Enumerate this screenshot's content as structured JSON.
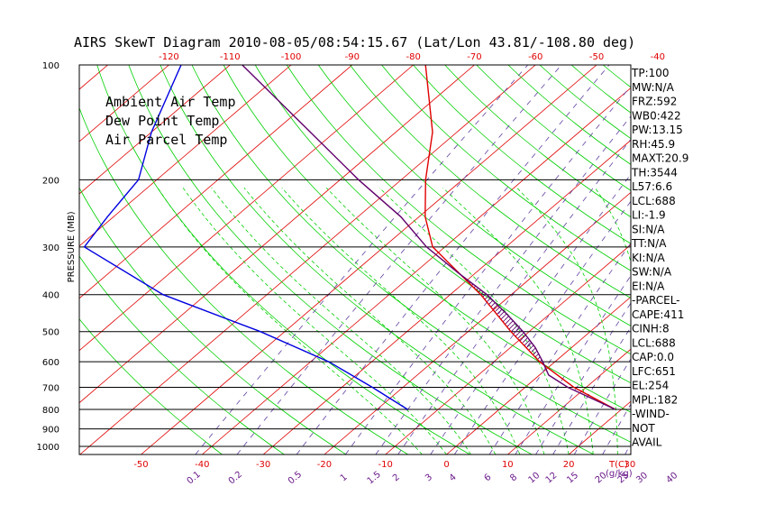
{
  "title": "AIRS SkewT Diagram 2010-08-05/08:54:15.67 (Lat/Lon 43.81/-108.80 deg)",
  "colors": {
    "ambient": "#e00000",
    "dewpoint": "#0000e0",
    "parcel": "#60006c",
    "isotherm": "#e00000",
    "dry_adiabat": "#00d000",
    "moist_adiabat": "#00d000",
    "mixing_ratio": "#6040a0",
    "pressure_line": "#000000",
    "top_tick": "#e00000",
    "bottom_tick": "#e00000",
    "mixing_label": "#6a1a8a"
  },
  "legend": {
    "ambient": "Ambient Air Temp",
    "dewpoint": "Dew Point Temp",
    "parcel": "Air Parcel Temp"
  },
  "chart_data": {
    "type": "line",
    "ylabel": "PRESSURE (MB)",
    "y_scale": "log",
    "ylim": [
      1050,
      100
    ],
    "pressure_ticks": [
      100,
      200,
      300,
      400,
      500,
      600,
      700,
      800,
      900,
      1000
    ],
    "top_temperature_ticks": [
      -120,
      -110,
      -100,
      -90,
      -80,
      -70,
      -60,
      -50,
      -40
    ],
    "bottom_temperature_ticks": [
      -50,
      -40,
      -30,
      -20,
      -10,
      0,
      10,
      20,
      30
    ],
    "bottom_axis_unit": "T(C)",
    "mixing_ratio_labels": [
      "0.1",
      "0.2",
      "0.5",
      "1",
      "1.5",
      "2",
      "3",
      "4",
      "6",
      "8",
      "10",
      "12",
      "15",
      "20",
      "25",
      "30",
      "40"
    ],
    "mixing_ratio_unit": "(g/kg)",
    "series": [
      {
        "key": "ambient",
        "pressure": [
          100,
          150,
          200,
          250,
          300,
          400,
          500,
          600,
          700,
          800
        ],
        "temperature": [
          -78,
          -64,
          -56,
          -49,
          -42,
          -25,
          -13,
          -2.5,
          8,
          19
        ]
      },
      {
        "key": "dewpoint",
        "pressure": [
          100,
          150,
          200,
          250,
          300,
          400,
          500,
          600,
          700,
          800
        ],
        "temperature": [
          -118,
          -110,
          -103,
          -101,
          -99,
          -77,
          -54,
          -37,
          -25,
          -15
        ]
      },
      {
        "key": "parcel",
        "pressure": [
          100,
          150,
          200,
          250,
          300,
          350,
          400,
          450,
          500,
          550,
          600,
          650,
          700,
          800
        ],
        "temperature": [
          -108,
          -84,
          -67,
          -53,
          -43,
          -33,
          -24,
          -17,
          -11,
          -6,
          -2,
          1.5,
          7,
          19
        ]
      }
    ],
    "indices": [
      "TP:100",
      "MW:N/A",
      "FRZ:592",
      "WB0:422",
      "PW:13.15",
      "RH:45.9",
      "MAXT:20.9",
      "TH:3544",
      "L57:6.6",
      "LCL:688",
      "LI:-1.9",
      "SI:N/A",
      "TT:N/A",
      "KI:N/A",
      "SW:N/A",
      "EI:N/A",
      "-PARCEL-",
      "CAPE:411",
      "CINH:8",
      "LCL:688",
      "CAP:0.0",
      "LFC:651",
      "EL:254",
      "MPL:182",
      "-WIND-",
      "NOT",
      "AVAIL"
    ]
  }
}
